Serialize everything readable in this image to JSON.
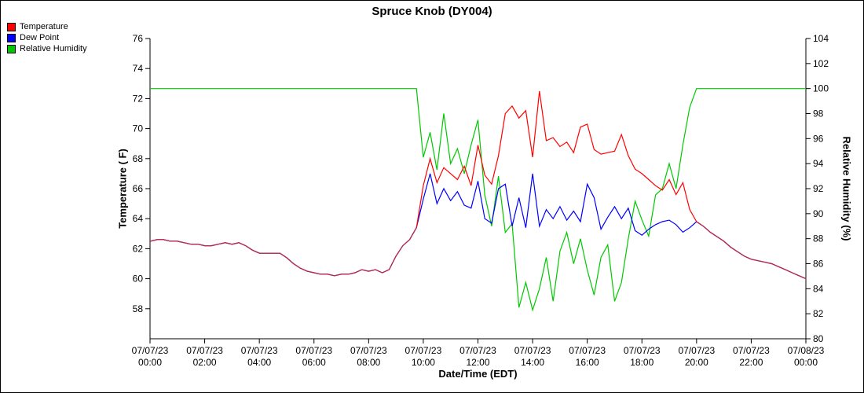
{
  "title": "Spruce Knob (DY004)",
  "legend": {
    "items": [
      {
        "label": "Temperature",
        "color": "#ff0000"
      },
      {
        "label": "Dew Point",
        "color": "#0000ff"
      },
      {
        "label": "Relative Humidity",
        "color": "#00c800"
      }
    ]
  },
  "chart_data": {
    "type": "line",
    "title": "Spruce Knob (DY004)",
    "xlabel": "Date/Time (EDT)",
    "ylabel_left": "Temperature ( F)",
    "ylabel_right": "Relative Humidity (%)",
    "grid": false,
    "legend_position": "top-left",
    "xlim": [
      0,
      24
    ],
    "ylim_left": [
      56,
      76
    ],
    "yticks_left": [
      58,
      60,
      62,
      64,
      66,
      68,
      70,
      72,
      74,
      76
    ],
    "ylim_right": [
      80,
      104
    ],
    "yticks_right": [
      80,
      82,
      84,
      86,
      88,
      90,
      92,
      94,
      96,
      98,
      100,
      102,
      104
    ],
    "x_ticks": [
      {
        "hour": 0,
        "date": "07/07/23",
        "time": "00:00"
      },
      {
        "hour": 2,
        "date": "07/07/23",
        "time": "02:00"
      },
      {
        "hour": 4,
        "date": "07/07/23",
        "time": "04:00"
      },
      {
        "hour": 6,
        "date": "07/07/23",
        "time": "06:00"
      },
      {
        "hour": 8,
        "date": "07/07/23",
        "time": "08:00"
      },
      {
        "hour": 10,
        "date": "07/07/23",
        "time": "10:00"
      },
      {
        "hour": 12,
        "date": "07/07/23",
        "time": "12:00"
      },
      {
        "hour": 14,
        "date": "07/07/23",
        "time": "14:00"
      },
      {
        "hour": 16,
        "date": "07/07/23",
        "time": "16:00"
      },
      {
        "hour": 18,
        "date": "07/07/23",
        "time": "18:00"
      },
      {
        "hour": 20,
        "date": "07/07/23",
        "time": "20:00"
      },
      {
        "hour": 22,
        "date": "07/07/23",
        "time": "22:00"
      },
      {
        "hour": 24,
        "date": "07/08/23",
        "time": "00:00"
      }
    ],
    "overlap_color": "#b03052",
    "x_hours": [
      0,
      0.25,
      0.5,
      0.75,
      1,
      1.25,
      1.5,
      1.75,
      2,
      2.25,
      2.5,
      2.75,
      3,
      3.25,
      3.5,
      3.75,
      4,
      4.25,
      4.5,
      4.75,
      5,
      5.25,
      5.5,
      5.75,
      6,
      6.25,
      6.5,
      6.75,
      7,
      7.25,
      7.5,
      7.75,
      8,
      8.25,
      8.5,
      8.75,
      9,
      9.25,
      9.5,
      9.75,
      10,
      10.25,
      10.5,
      10.75,
      11,
      11.25,
      11.5,
      11.75,
      12,
      12.25,
      12.5,
      12.75,
      13,
      13.25,
      13.5,
      13.75,
      14,
      14.25,
      14.5,
      14.75,
      15,
      15.25,
      15.5,
      15.75,
      16,
      16.25,
      16.5,
      16.75,
      17,
      17.25,
      17.5,
      17.75,
      18,
      18.25,
      18.5,
      18.75,
      19,
      19.25,
      19.5,
      19.75,
      20,
      20.25,
      20.5,
      20.75,
      21,
      21.25,
      21.5,
      21.75,
      22,
      22.25,
      22.5,
      22.75,
      23,
      23.25,
      23.5,
      23.75,
      24
    ],
    "series": [
      {
        "name": "Temperature",
        "axis": "left",
        "color": "#ff0000",
        "values": [
          62.5,
          62.6,
          62.6,
          62.5,
          62.5,
          62.4,
          62.3,
          62.3,
          62.2,
          62.2,
          62.3,
          62.4,
          62.3,
          62.4,
          62.2,
          61.9,
          61.7,
          61.7,
          61.7,
          61.7,
          61.4,
          61.0,
          60.7,
          60.5,
          60.4,
          60.3,
          60.3,
          60.2,
          60.3,
          60.3,
          60.4,
          60.6,
          60.5,
          60.6,
          60.4,
          60.6,
          61.5,
          62.2,
          62.6,
          63.4,
          66.2,
          68.0,
          66.4,
          67.4,
          67.0,
          66.6,
          67.5,
          66.2,
          68.9,
          66.9,
          66.3,
          68.2,
          71.0,
          71.5,
          70.7,
          71.2,
          68.1,
          72.5,
          69.2,
          69.4,
          68.8,
          69.1,
          68.4,
          70.1,
          70.3,
          68.6,
          68.3,
          68.4,
          68.5,
          69.6,
          68.2,
          67.3,
          67.0,
          66.6,
          66.2,
          65.9,
          66.6,
          65.6,
          66.4,
          64.6,
          63.8,
          63.5,
          63.1,
          62.8,
          62.5,
          62.1,
          61.8,
          61.5,
          61.3,
          61.2,
          61.1,
          61.0,
          60.8,
          60.6,
          60.4,
          60.2,
          60.0
        ]
      },
      {
        "name": "Dew Point",
        "axis": "left",
        "color": "#0000ff",
        "values": [
          62.5,
          62.6,
          62.6,
          62.5,
          62.5,
          62.4,
          62.3,
          62.3,
          62.2,
          62.2,
          62.3,
          62.4,
          62.3,
          62.4,
          62.2,
          61.9,
          61.7,
          61.7,
          61.7,
          61.7,
          61.4,
          61.0,
          60.7,
          60.5,
          60.4,
          60.3,
          60.3,
          60.2,
          60.3,
          60.3,
          60.4,
          60.6,
          60.5,
          60.6,
          60.4,
          60.6,
          61.5,
          62.2,
          62.6,
          63.4,
          65.3,
          67.0,
          65.0,
          66.0,
          65.2,
          65.8,
          64.9,
          64.7,
          66.5,
          64.0,
          63.7,
          66.0,
          66.3,
          63.5,
          65.4,
          63.4,
          67.0,
          63.5,
          64.6,
          64.0,
          64.8,
          63.9,
          64.5,
          63.8,
          66.3,
          65.4,
          63.3,
          64.1,
          64.8,
          64.0,
          64.7,
          63.2,
          62.9,
          63.3,
          63.6,
          63.8,
          63.9,
          63.6,
          63.1,
          63.4,
          63.8,
          63.5,
          63.1,
          62.8,
          62.5,
          62.1,
          61.8,
          61.5,
          61.3,
          61.2,
          61.1,
          61.0,
          60.8,
          60.6,
          60.4,
          60.2,
          60.0
        ]
      },
      {
        "name": "Relative Humidity",
        "axis": "right",
        "color": "#00c800",
        "values": [
          100,
          100,
          100,
          100,
          100,
          100,
          100,
          100,
          100,
          100,
          100,
          100,
          100,
          100,
          100,
          100,
          100,
          100,
          100,
          100,
          100,
          100,
          100,
          100,
          100,
          100,
          100,
          100,
          100,
          100,
          100,
          100,
          100,
          100,
          100,
          100,
          100,
          100,
          100,
          100,
          94.5,
          96.5,
          93.5,
          98.0,
          94.0,
          95.2,
          93.2,
          95.5,
          97.5,
          91.5,
          89.0,
          93.0,
          88.5,
          89.2,
          82.5,
          84.5,
          82.3,
          84.0,
          86.5,
          83.0,
          87.0,
          88.5,
          86.0,
          88.0,
          85.5,
          83.5,
          86.5,
          87.5,
          83.0,
          84.5,
          88.0,
          91.0,
          89.5,
          88.2,
          91.5,
          92.0,
          94.0,
          92.0,
          95.5,
          98.5,
          100,
          100,
          100,
          100,
          100,
          100,
          100,
          100,
          100,
          100,
          100,
          100,
          100,
          100,
          100,
          100,
          100
        ]
      }
    ]
  }
}
